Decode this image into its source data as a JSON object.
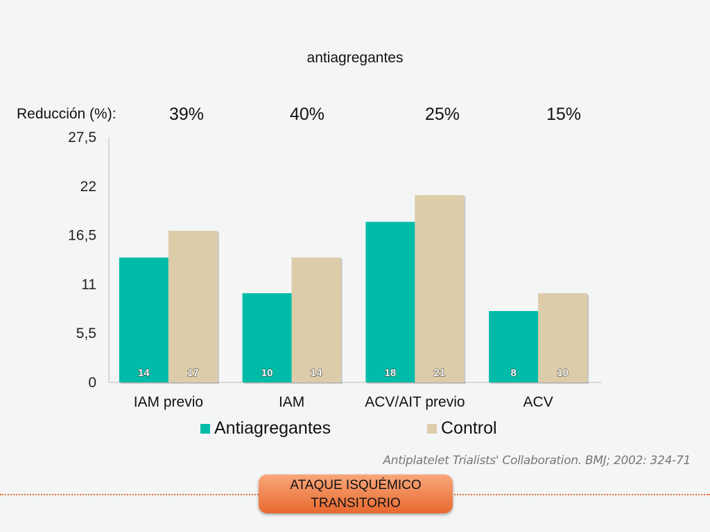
{
  "subtitle": "antiagregantes",
  "reduction": {
    "label": "Reducción (%):",
    "values": [
      "39%",
      "40%",
      "25%",
      "15%"
    ]
  },
  "chart_data": {
    "type": "bar",
    "categories": [
      "IAM previo",
      "IAM",
      "ACV/AIT previo",
      "ACV"
    ],
    "series": [
      {
        "name": "Antiagregantes",
        "values": [
          14,
          10,
          18,
          8
        ],
        "color": "#00bba7"
      },
      {
        "name": "Control",
        "values": [
          17,
          14,
          21,
          10
        ],
        "color": "#dccca9"
      }
    ],
    "ylim": [
      0,
      27.5
    ],
    "yticks": [
      "0",
      "5,5",
      "11",
      "16,5",
      "22",
      "27,5"
    ],
    "legend": "bottom",
    "grid": false
  },
  "citation": "Antiplatelet Trialists' Collaboration. BMJ; 2002: 324-71",
  "badge": {
    "line1": "ATAQUE ISQUÉMICO",
    "line2": "TRANSITORIO",
    "color": "#e8692f"
  }
}
